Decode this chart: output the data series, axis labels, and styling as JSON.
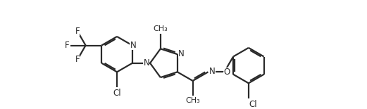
{
  "bg_color": "#ffffff",
  "line_color": "#2a2a2a",
  "line_width": 1.6,
  "font_size": 8.5,
  "figsize": [
    5.21,
    1.55
  ],
  "dpi": 100,
  "xlim": [
    0,
    52
  ],
  "ylim": [
    -2,
    16
  ]
}
